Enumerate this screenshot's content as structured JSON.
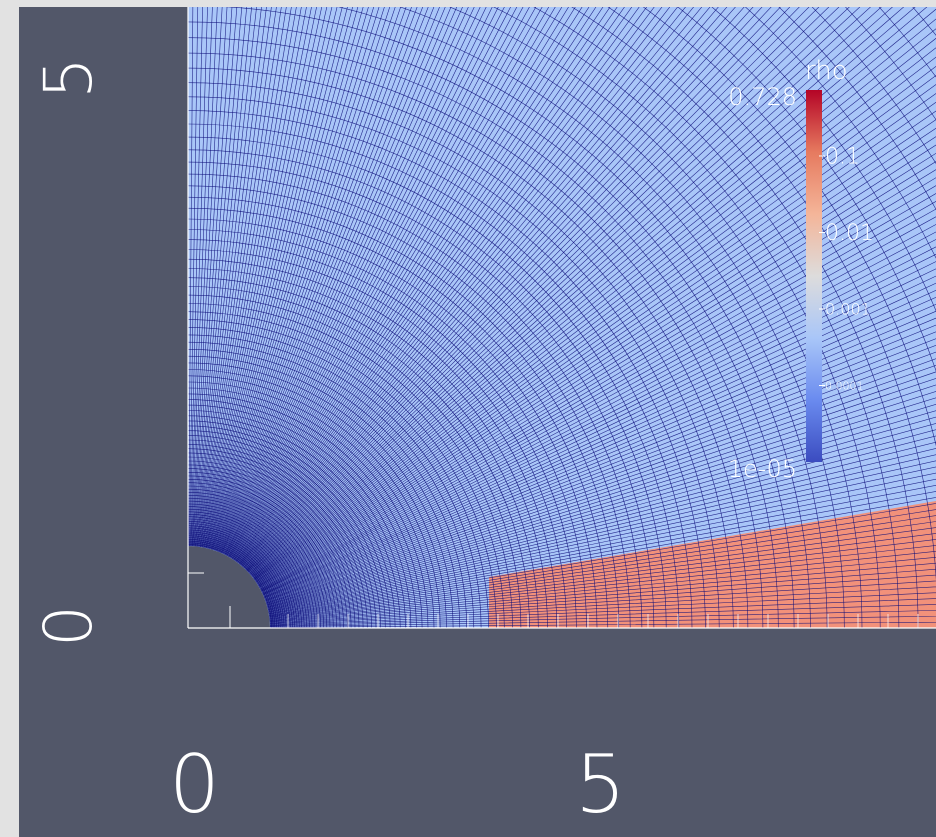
{
  "colors": {
    "background": "#525769",
    "low_density": "#a9c6f8",
    "shock_region": "#f2917a",
    "grid_line": "#0a0a78",
    "axis": "#ffffff"
  },
  "plot": {
    "axes": {
      "x_ticks": [
        "0",
        "5"
      ],
      "y_ticks": [
        "0",
        "5"
      ]
    }
  },
  "colorbar": {
    "title": "rho",
    "scale": "log",
    "max_label": "0.728",
    "min_label": "1e-05",
    "tick_labels": [
      "0.1",
      "0.01",
      "0.001",
      "0.0001"
    ],
    "ticks": [
      {
        "value": "0.1",
        "label": "0.1"
      },
      {
        "value": "0.01",
        "label": "0.01"
      },
      {
        "value": "0.001",
        "label": "0.001"
      },
      {
        "value": "0.0001",
        "label": "0.0001"
      }
    ],
    "gradient": [
      "#3b4cc0",
      "#6a8bef",
      "#a9c6f8",
      "#dddcdc",
      "#f4b599",
      "#e67a5f",
      "#b40426"
    ]
  }
}
